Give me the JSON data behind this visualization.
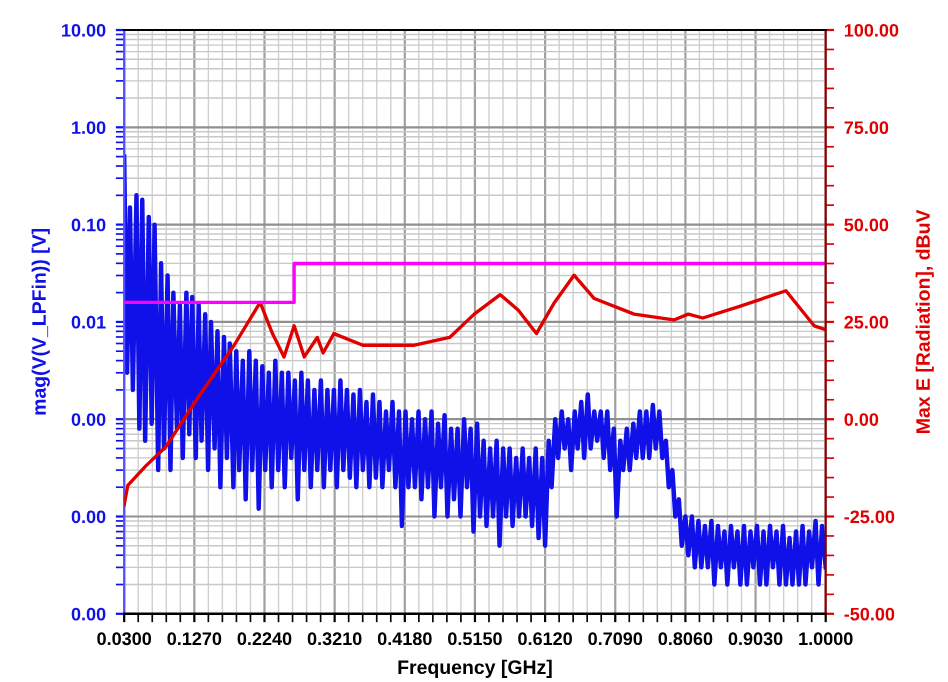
{
  "chart_data": {
    "type": "line",
    "xlabel": "Frequency [GHz]",
    "ylabel": "mag(V(V_LPFin)) [V]",
    "y2label": "Max E [Radiation], dBuV",
    "xlim": [
      0.03,
      1.0
    ],
    "xticks": [
      {
        "value": 0.03,
        "label": "0.0300"
      },
      {
        "value": 0.127,
        "label": "0.1270"
      },
      {
        "value": 0.224,
        "label": "0.2240"
      },
      {
        "value": 0.321,
        "label": "0.3210"
      },
      {
        "value": 0.418,
        "label": "0.4180"
      },
      {
        "value": 0.515,
        "label": "0.5150"
      },
      {
        "value": 0.612,
        "label": "0.6120"
      },
      {
        "value": 0.709,
        "label": "0.7090"
      },
      {
        "value": 0.806,
        "label": "0.8060"
      },
      {
        "value": 0.903,
        "label": "0.9030"
      },
      {
        "value": 1.0,
        "label": "1.0000"
      }
    ],
    "log": "y",
    "ylim": [
      1e-05,
      10
    ],
    "yticks": [
      {
        "value": 10,
        "label": "10.00"
      },
      {
        "value": 1,
        "label": "1.00"
      },
      {
        "value": 0.1,
        "label": "0.10"
      },
      {
        "value": 0.01,
        "label": "0.01"
      },
      {
        "value": 0.001,
        "label": "0.00"
      },
      {
        "value": 0.0001,
        "label": "0.00"
      },
      {
        "value": 1e-05,
        "label": "0.00"
      }
    ],
    "y2lim": [
      -50,
      100
    ],
    "y2ticks": [
      {
        "value": 100,
        "label": "100.00"
      },
      {
        "value": 75,
        "label": "75.00"
      },
      {
        "value": 50,
        "label": "50.00"
      },
      {
        "value": 25,
        "label": "25.00"
      },
      {
        "value": 0,
        "label": "0.00"
      },
      {
        "value": -25,
        "label": "-25.00"
      },
      {
        "value": -50,
        "label": "-50.00"
      }
    ],
    "grid": true,
    "legend": false,
    "marker": "none",
    "line_style": "solid",
    "series": [
      {
        "color": "#1010e8",
        "axis": "y",
        "x": [
          0.03,
          0.034,
          0.038,
          0.042,
          0.047,
          0.051,
          0.055,
          0.059,
          0.064,
          0.068,
          0.072,
          0.077,
          0.081,
          0.085,
          0.09,
          0.094,
          0.098,
          0.103,
          0.107,
          0.111,
          0.116,
          0.12,
          0.124,
          0.129,
          0.133,
          0.137,
          0.142,
          0.146,
          0.15,
          0.155,
          0.159,
          0.163,
          0.168,
          0.172,
          0.176,
          0.181,
          0.185,
          0.189,
          0.194,
          0.198,
          0.203,
          0.207,
          0.212,
          0.216,
          0.221,
          0.225,
          0.23,
          0.234,
          0.239,
          0.243,
          0.248,
          0.252,
          0.257,
          0.261,
          0.266,
          0.27,
          0.275,
          0.279,
          0.284,
          0.288,
          0.293,
          0.297,
          0.302,
          0.306,
          0.311,
          0.315,
          0.32,
          0.324,
          0.329,
          0.333,
          0.338,
          0.342,
          0.347,
          0.351,
          0.356,
          0.36,
          0.365,
          0.369,
          0.374,
          0.378,
          0.383,
          0.387,
          0.392,
          0.396,
          0.401,
          0.405,
          0.41,
          0.414,
          0.419,
          0.423,
          0.428,
          0.432,
          0.437,
          0.441,
          0.446,
          0.45,
          0.455,
          0.459,
          0.464,
          0.468,
          0.473,
          0.477,
          0.482,
          0.486,
          0.491,
          0.495,
          0.5,
          0.504,
          0.509,
          0.513,
          0.518,
          0.522,
          0.527,
          0.531,
          0.536,
          0.54,
          0.545,
          0.549,
          0.554,
          0.558,
          0.563,
          0.567,
          0.572,
          0.576,
          0.581,
          0.585,
          0.59,
          0.594,
          0.599,
          0.603,
          0.608,
          0.612,
          0.617,
          0.621,
          0.626,
          0.63,
          0.635,
          0.639,
          0.644,
          0.648,
          0.653,
          0.657,
          0.662,
          0.666,
          0.671,
          0.675,
          0.68,
          0.684,
          0.689,
          0.693,
          0.698,
          0.702,
          0.707,
          0.711,
          0.716,
          0.72,
          0.725,
          0.729,
          0.734,
          0.738,
          0.743,
          0.747,
          0.752,
          0.756,
          0.761,
          0.765,
          0.77,
          0.774,
          0.779,
          0.783,
          0.788,
          0.792,
          0.797,
          0.801,
          0.806,
          0.81,
          0.815,
          0.819,
          0.824,
          0.828,
          0.833,
          0.837,
          0.842,
          0.846,
          0.851,
          0.855,
          0.86,
          0.864,
          0.869,
          0.873,
          0.878,
          0.882,
          0.887,
          0.891,
          0.896,
          0.9,
          0.905,
          0.909,
          0.914,
          0.918,
          0.923,
          0.927,
          0.932,
          0.936,
          0.941,
          0.945,
          0.95,
          0.954,
          0.959,
          0.963,
          0.968,
          0.972,
          0.977,
          0.981,
          0.986,
          0.99,
          0.995,
          1.0
        ],
        "values": [
          0.5,
          0.003,
          0.15,
          0.002,
          0.2,
          0.0008,
          0.18,
          0.0006,
          0.12,
          0.0009,
          0.1,
          0.0003,
          0.04,
          0.0005,
          0.03,
          0.0003,
          0.02,
          0.0008,
          0.015,
          0.0004,
          0.02,
          0.0007,
          0.018,
          0.0004,
          0.015,
          0.0006,
          0.012,
          0.0003,
          0.01,
          0.0005,
          0.008,
          0.0002,
          0.007,
          0.0004,
          0.006,
          0.0002,
          0.005,
          0.0003,
          0.004,
          0.00015,
          0.005,
          0.0003,
          0.004,
          0.00012,
          0.0035,
          0.0003,
          0.003,
          0.0002,
          0.004,
          0.0003,
          0.003,
          0.0002,
          0.003,
          0.0004,
          0.0025,
          0.00015,
          0.003,
          0.0003,
          0.0025,
          0.0002,
          0.002,
          0.0003,
          0.0025,
          0.0002,
          0.002,
          0.0003,
          0.002,
          0.0002,
          0.0025,
          0.0003,
          0.002,
          0.00025,
          0.0018,
          0.0002,
          0.002,
          0.0003,
          0.0015,
          0.0002,
          0.0018,
          0.00025,
          0.0015,
          0.0002,
          0.0012,
          0.0003,
          0.0015,
          0.0002,
          0.0012,
          8e-05,
          0.0012,
          0.0002,
          0.001,
          0.0002,
          0.0012,
          0.00015,
          0.001,
          0.0002,
          0.0012,
          0.0001,
          0.0009,
          0.0002,
          0.0011,
          0.0001,
          0.0008,
          0.00015,
          0.0008,
          0.0001,
          0.001,
          0.0002,
          0.0008,
          7e-05,
          0.0009,
          0.0001,
          0.0006,
          8e-05,
          0.0005,
          0.0001,
          0.0006,
          5e-05,
          0.0005,
          0.0001,
          0.0005,
          8e-05,
          0.0004,
          0.0001,
          0.0005,
          0.0001,
          0.0004,
          8e-05,
          0.0005,
          6e-05,
          0.0004,
          5e-05,
          0.0006,
          0.0002,
          0.001,
          0.0004,
          0.0012,
          0.0005,
          0.001,
          0.0003,
          0.0012,
          0.0005,
          0.0015,
          0.0004,
          0.0018,
          0.0005,
          0.0012,
          0.0006,
          0.0012,
          0.0004,
          0.0012,
          0.0003,
          0.0008,
          0.0001,
          0.0006,
          0.0003,
          0.0008,
          0.0003,
          0.0009,
          0.0004,
          0.0012,
          0.0004,
          0.0012,
          0.0004,
          0.0014,
          0.0005,
          0.0012,
          0.0004,
          0.0006,
          0.0002,
          0.0003,
          0.0001,
          0.00015,
          5e-05,
          0.0001,
          4e-05,
          0.0001,
          3e-05,
          9e-05,
          3e-05,
          8e-05,
          3e-05,
          9e-05,
          2e-05,
          8e-05,
          3e-05,
          7e-05,
          2e-05,
          8e-05,
          3e-05,
          7e-05,
          2e-05,
          8e-05,
          2e-05,
          7e-05,
          3e-05,
          8e-05,
          2e-05,
          7e-05,
          2e-05,
          8e-05,
          3e-05,
          7e-05,
          2e-05,
          8e-05,
          2e-05,
          6e-05,
          2e-05,
          7e-05,
          2e-05,
          8e-05,
          2e-05,
          7e-05,
          3e-05,
          9e-05,
          2e-05,
          8e-05,
          3e-05
        ]
      },
      {
        "color": "#e00000",
        "axis": "y2",
        "x": [
          0.03,
          0.035,
          0.06,
          0.088,
          0.13,
          0.182,
          0.218,
          0.235,
          0.251,
          0.265,
          0.279,
          0.297,
          0.305,
          0.32,
          0.36,
          0.43,
          0.48,
          0.514,
          0.55,
          0.575,
          0.6,
          0.625,
          0.652,
          0.68,
          0.735,
          0.79,
          0.81,
          0.83,
          0.881,
          0.945,
          0.984,
          1.0
        ],
        "values": [
          -22,
          -17,
          -12,
          -7,
          5,
          19,
          30,
          22,
          16,
          24,
          16,
          21,
          17,
          22,
          19,
          19,
          21,
          27,
          32,
          28,
          22,
          30,
          37,
          31,
          27,
          25.5,
          27,
          26,
          29,
          33,
          24,
          23
        ]
      },
      {
        "color": "#ff00ff",
        "axis": "y2",
        "x": [
          0.03,
          0.265,
          0.265,
          1.0
        ],
        "values": [
          30,
          30,
          40,
          40
        ]
      }
    ]
  }
}
